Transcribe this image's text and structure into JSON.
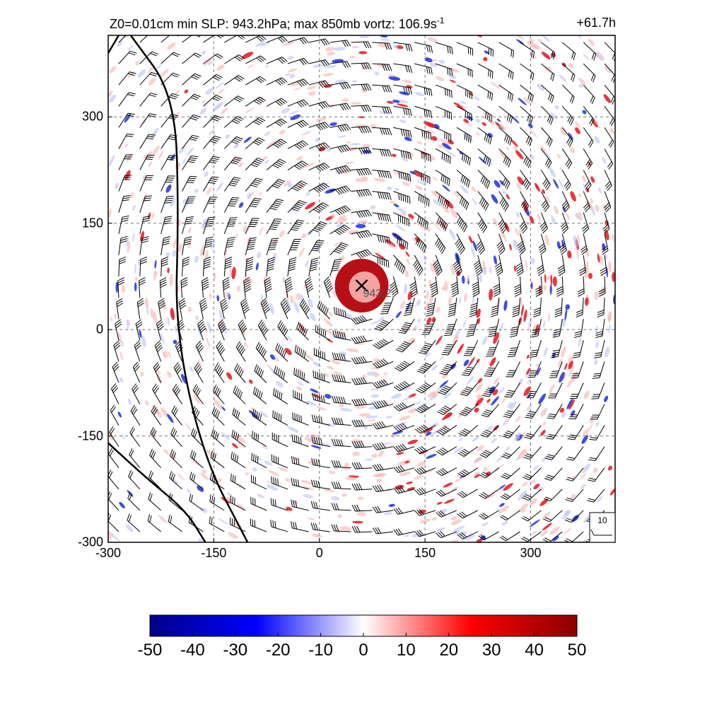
{
  "header": {
    "title_text": "Z0=0.01cm  min SLP: 943.2hPa; max 850mb vortz: 106.9s",
    "title_superscript": "-1",
    "forecast_hour": "+61.7h"
  },
  "chart_data": {
    "type": "heatmap",
    "title": "Z0=0.01cm  min SLP: 943.2hPa; max 850mb vortz: 106.9s-1",
    "x_ticks": [
      "-300",
      "-150",
      "0",
      "150",
      "300"
    ],
    "y_ticks": [
      "300",
      "150",
      "0",
      "-150",
      "-300"
    ],
    "xlim": [
      -300,
      420
    ],
    "ylim": [
      -300,
      415
    ],
    "grid": true,
    "grid_style": "dashed",
    "center": {
      "x": 60,
      "y": 62,
      "marker": "x",
      "label": "943.2"
    },
    "colorbar": {
      "ticks": [
        "-50",
        "-40",
        "-30",
        "-20",
        "-10",
        "0",
        "10",
        "20",
        "30",
        "40",
        "50"
      ],
      "range": [
        -50,
        50
      ],
      "colors": [
        "#00008b",
        "#0000ff",
        "#ffffff",
        "#ff0000",
        "#8b0000"
      ]
    },
    "reference_vector": {
      "label": "10"
    },
    "contours": [
      {
        "points": [
          [
            -268,
            415
          ],
          [
            -205,
            330
          ],
          [
            -200,
            160
          ],
          [
            -205,
            0
          ],
          [
            -165,
            -180
          ],
          [
            -102,
            -300
          ]
        ]
      },
      {
        "points": [
          [
            -300,
            -160
          ],
          [
            -245,
            -210
          ],
          [
            -190,
            -255
          ],
          [
            -162,
            -300
          ]
        ]
      },
      {
        "points": [
          [
            -300,
            390
          ],
          [
            -285,
            415
          ]
        ]
      }
    ]
  }
}
